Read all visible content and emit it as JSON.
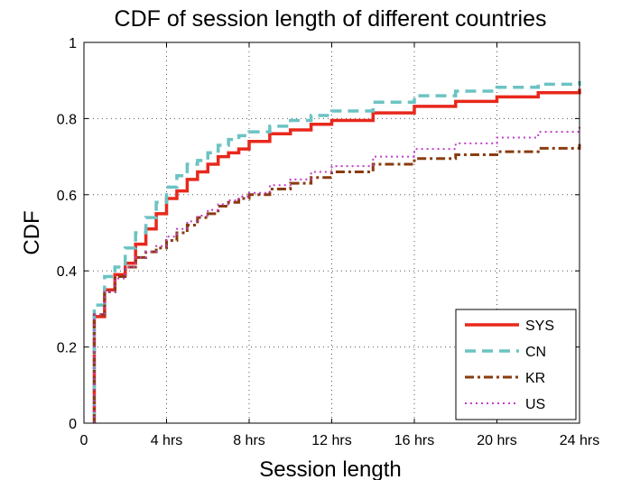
{
  "chart_data": {
    "type": "line",
    "title": "CDF of session length of different countries",
    "xlabel": "Session length",
    "ylabel": "CDF",
    "xlim": [
      0,
      24
    ],
    "ylim": [
      0,
      1
    ],
    "x_ticks": [
      0,
      4,
      8,
      12,
      16,
      20,
      24
    ],
    "x_tick_labels": [
      "0",
      "4 hrs",
      "8 hrs",
      "12 hrs",
      "16 hrs",
      "20 hrs",
      "24 hrs"
    ],
    "y_ticks": [
      0,
      0.2,
      0.4,
      0.6,
      0.8,
      1
    ],
    "y_tick_labels": [
      "0",
      "0.2",
      "0.4",
      "0.6",
      "0.8",
      "1"
    ],
    "grid": true,
    "legend_position": "bottom-right",
    "series": [
      {
        "name": "SYS",
        "color": "#e8281c",
        "dash": "solid",
        "x": [
          0.5,
          0.5,
          0.5,
          0.5,
          1.0,
          1.5,
          2.0,
          2.5,
          3.0,
          3.5,
          4.0,
          4.5,
          5.0,
          5.5,
          6.0,
          6.5,
          7.0,
          7.5,
          8.0,
          9.0,
          10.0,
          11.0,
          12.0,
          14.0,
          16.0,
          18.0,
          20.0,
          22.0,
          24.0
        ],
        "y": [
          0.0,
          0.12,
          0.2,
          0.28,
          0.35,
          0.39,
          0.42,
          0.47,
          0.51,
          0.55,
          0.59,
          0.61,
          0.64,
          0.66,
          0.68,
          0.7,
          0.71,
          0.72,
          0.74,
          0.76,
          0.77,
          0.785,
          0.795,
          0.815,
          0.832,
          0.845,
          0.857,
          0.868,
          0.878
        ]
      },
      {
        "name": "CN",
        "color": "#6cc3c3",
        "dash": "dashed",
        "x": [
          0.5,
          0.5,
          0.5,
          0.5,
          1.0,
          1.5,
          2.0,
          2.5,
          3.0,
          3.5,
          4.0,
          4.5,
          5.0,
          5.5,
          6.0,
          6.5,
          7.0,
          7.5,
          8.0,
          9.0,
          10.0,
          11.0,
          12.0,
          14.0,
          16.0,
          18.0,
          20.0,
          22.0,
          24.0
        ],
        "y": [
          0.0,
          0.12,
          0.2,
          0.31,
          0.385,
          0.41,
          0.46,
          0.5,
          0.54,
          0.58,
          0.62,
          0.65,
          0.68,
          0.69,
          0.71,
          0.73,
          0.745,
          0.755,
          0.765,
          0.78,
          0.795,
          0.808,
          0.82,
          0.843,
          0.86,
          0.872,
          0.882,
          0.89,
          0.898
        ]
      },
      {
        "name": "KR",
        "color": "#8a3c0f",
        "dash": "dashdot",
        "x": [
          0.5,
          0.5,
          0.5,
          0.5,
          1.0,
          1.5,
          2.0,
          2.5,
          3.0,
          3.5,
          4.0,
          4.5,
          5.0,
          5.5,
          6.0,
          6.5,
          7.0,
          7.5,
          8.0,
          9.0,
          10.0,
          11.0,
          12.0,
          14.0,
          16.0,
          18.0,
          20.0,
          22.0,
          24.0
        ],
        "y": [
          0.0,
          0.12,
          0.2,
          0.285,
          0.345,
          0.385,
          0.41,
          0.435,
          0.45,
          0.46,
          0.48,
          0.5,
          0.52,
          0.54,
          0.55,
          0.57,
          0.58,
          0.59,
          0.6,
          0.615,
          0.63,
          0.645,
          0.66,
          0.68,
          0.695,
          0.705,
          0.713,
          0.722,
          0.733
        ]
      },
      {
        "name": "US",
        "color": "#c03cc8",
        "dash": "dotted",
        "x": [
          0.5,
          0.5,
          0.5,
          0.5,
          1.0,
          1.5,
          2.0,
          2.5,
          3.0,
          3.5,
          4.0,
          4.5,
          5.0,
          5.5,
          6.0,
          6.5,
          7.0,
          7.5,
          8.0,
          9.0,
          10.0,
          11.0,
          12.0,
          14.0,
          16.0,
          18.0,
          20.0,
          22.0,
          24.0
        ],
        "y": [
          0.0,
          0.12,
          0.2,
          0.285,
          0.345,
          0.38,
          0.41,
          0.435,
          0.45,
          0.465,
          0.49,
          0.51,
          0.53,
          0.545,
          0.56,
          0.575,
          0.585,
          0.595,
          0.605,
          0.625,
          0.64,
          0.66,
          0.675,
          0.7,
          0.72,
          0.735,
          0.75,
          0.765,
          0.778
        ]
      }
    ]
  }
}
